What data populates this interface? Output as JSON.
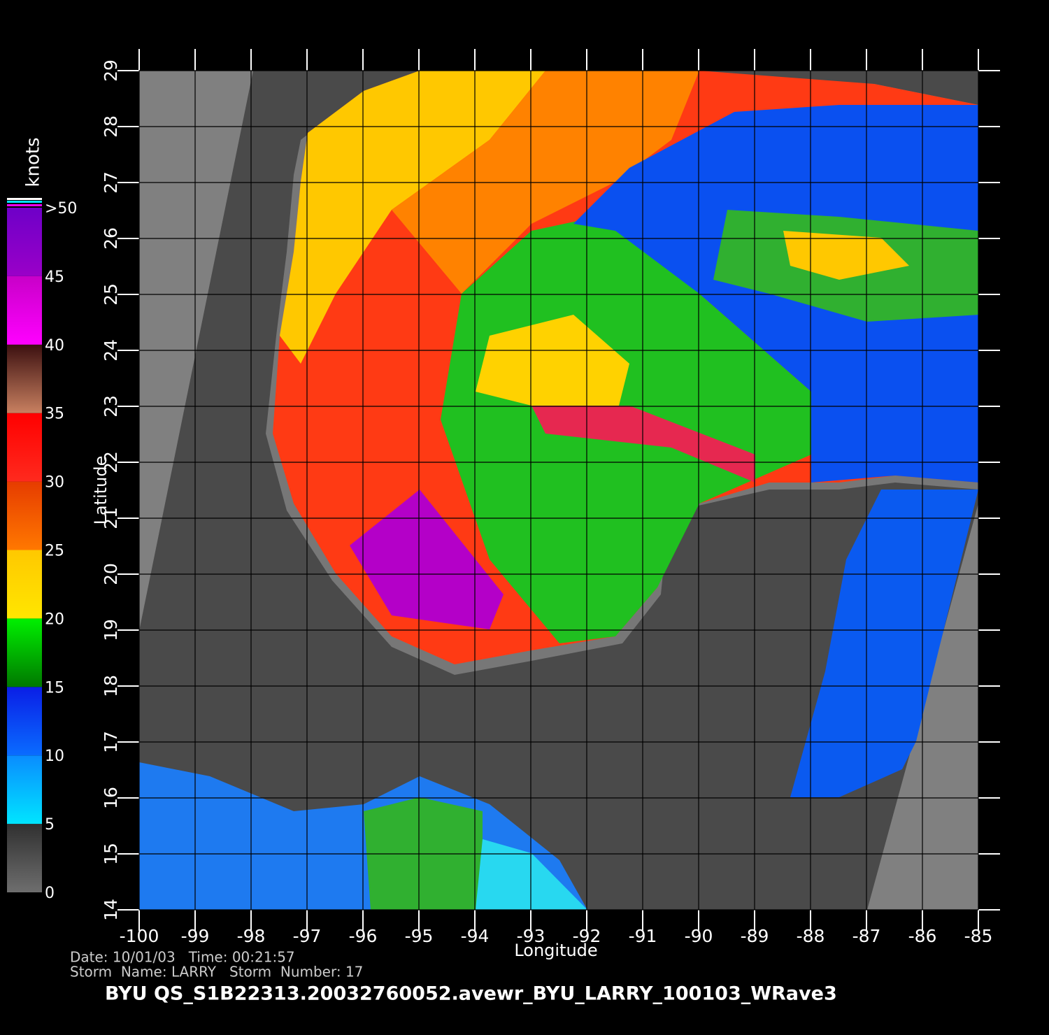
{
  "chart_data": {
    "type": "map",
    "title": "BYU  QS_S1B22313.20032760052.avewr_BYU_LARRY_100103_WRave3",
    "info": [
      "Date: 10/01/03   Time: 00:21:57",
      "Storm  Name: LARRY   Storm  Number: 17"
    ],
    "xlabel": "Longitude",
    "ylabel": "Latitude",
    "xlim": [
      -100,
      -85
    ],
    "ylim": [
      14,
      29
    ],
    "xticks": [
      -100,
      -99,
      -98,
      -97,
      -96,
      -95,
      -94,
      -93,
      -92,
      -91,
      -90,
      -89,
      -88,
      -87,
      -86,
      -85
    ],
    "yticks": [
      14,
      15,
      16,
      17,
      18,
      19,
      20,
      21,
      22,
      23,
      24,
      25,
      26,
      27,
      28,
      29
    ],
    "grid": true,
    "colorbar": {
      "label": "knots",
      "lim": [
        0,
        50
      ],
      "ticks": [
        0,
        5,
        10,
        15,
        20,
        25,
        30,
        35,
        40,
        45,
        {
          "value": 50,
          "label": ">50"
        }
      ],
      "colors": [
        [
          "#6e6e6e",
          "#303030"
        ],
        [
          "#00e5ff",
          "#0a8cff"
        ],
        [
          "#0a6cff",
          "#0a1ee6"
        ],
        [
          "#007800",
          "#00f000"
        ],
        [
          "#ffe600",
          "#ffc800"
        ],
        [
          "#ff7800",
          "#e63c00"
        ],
        [
          "#ff2a1e",
          "#ff0000"
        ],
        [
          "#c88060",
          "#3c1010"
        ],
        [
          "#ff00ff",
          "#c800c8"
        ],
        [
          "#9a00c8",
          "#6e00c8"
        ]
      ]
    }
  }
}
